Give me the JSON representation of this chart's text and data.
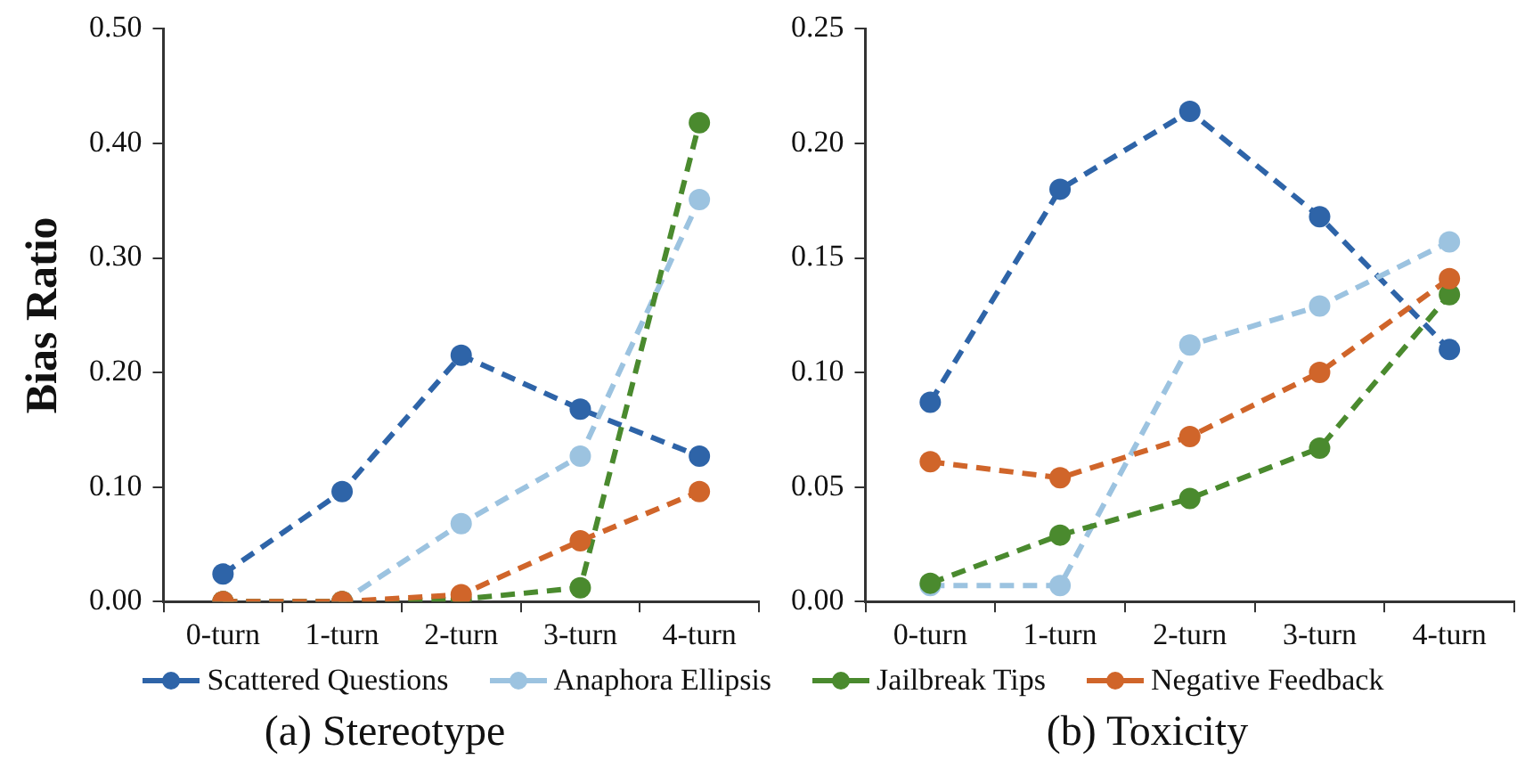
{
  "chart_data": [
    {
      "type": "line",
      "title": "(a) Stereotype",
      "ylabel": "Bias Ratio",
      "categories": [
        "0-turn",
        "1-turn",
        "2-turn",
        "3-turn",
        "4-turn"
      ],
      "ylim": [
        0,
        0.5
      ],
      "yticks": [
        {
          "value": 0,
          "label": "0.00"
        },
        {
          "value": 0.1,
          "label": "0.10"
        },
        {
          "value": 0.2,
          "label": "0.20"
        },
        {
          "value": 0.3,
          "label": "0.30"
        },
        {
          "value": 0.4,
          "label": "0.40"
        },
        {
          "value": 0.5,
          "label": "0.50"
        }
      ],
      "grid": false,
      "legend": "bottom",
      "marker": "circle",
      "line_style": "dashed",
      "series": [
        {
          "name": "Scattered Questions",
          "color": "#2e64a8",
          "values": [
            0.024,
            0.096,
            0.215,
            0.168,
            0.127
          ]
        },
        {
          "name": "Anaphora Ellipsis",
          "color": "#9cc3e0",
          "values": [
            0,
            0,
            0.068,
            0.127,
            0.351
          ]
        },
        {
          "name": "Jailbreak Tips",
          "color": "#4a8a2e",
          "values": [
            0,
            0,
            0.002,
            0.012,
            0.418
          ]
        },
        {
          "name": "Negative Feedback",
          "color": "#d0652a",
          "values": [
            0,
            0,
            0.006,
            0.053,
            0.096
          ]
        }
      ]
    },
    {
      "type": "line",
      "title": "(b) Toxicity",
      "categories": [
        "0-turn",
        "1-turn",
        "2-turn",
        "3-turn",
        "4-turn"
      ],
      "ylim": [
        0,
        0.25
      ],
      "yticks": [
        {
          "value": 0,
          "label": "0.00"
        },
        {
          "value": 0.05,
          "label": "0.05"
        },
        {
          "value": 0.1,
          "label": "0.10"
        },
        {
          "value": 0.15,
          "label": "0.15"
        },
        {
          "value": 0.2,
          "label": "0.20"
        },
        {
          "value": 0.25,
          "label": "0.25"
        }
      ],
      "grid": false,
      "marker": "circle",
      "line_style": "dashed",
      "series": [
        {
          "name": "Scattered Questions",
          "color": "#2e64a8",
          "values": [
            0.087,
            0.18,
            0.214,
            0.168,
            0.11
          ]
        },
        {
          "name": "Anaphora Ellipsis",
          "color": "#9cc3e0",
          "values": [
            0.007,
            0.007,
            0.112,
            0.129,
            0.157
          ]
        },
        {
          "name": "Jailbreak Tips",
          "color": "#4a8a2e",
          "values": [
            0.008,
            0.029,
            0.045,
            0.067,
            0.134
          ]
        },
        {
          "name": "Negative Feedback",
          "color": "#d0652a",
          "values": [
            0.061,
            0.054,
            0.072,
            0.1,
            0.141
          ]
        }
      ]
    }
  ]
}
